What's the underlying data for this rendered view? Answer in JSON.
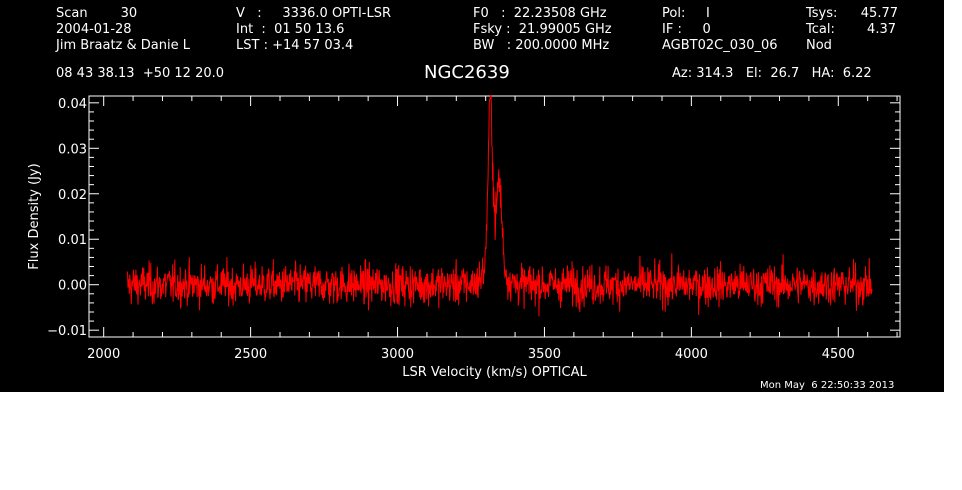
{
  "header": {
    "col1": [
      "Scan        30",
      "2004-01-28",
      "Jim Braatz & Danie L"
    ],
    "col2": [
      "V   :     3336.0 OPTI-LSR",
      "Int  :  01 50 13.6",
      "LST : +14 57 03.4"
    ],
    "col3": [
      "F0   :  22.23508 GHz",
      "Fsky :  21.99005 GHz",
      "BW   : 200.0000 MHz"
    ],
    "col4": [
      "Pol:     I",
      "IF :     0",
      "AGBT02C_030_06"
    ],
    "col5a": [
      "Tsys:",
      "Tcal:",
      "Nod"
    ],
    "col5b": [
      "45.77",
      "4.37",
      ""
    ],
    "coords": "08 43 38.13  +50 12 20.0",
    "source": "NGC2639",
    "azel": "Az: 314.3   El:  26.7   HA:  6.22",
    "timestamp": "Mon May  6 22:50:33 2013"
  },
  "colors": {
    "background": "#000000",
    "axes": "#ffffff",
    "series": "#ff0000"
  },
  "chart_data": {
    "type": "line",
    "xlabel": "LSR Velocity (km/s) OPTICAL",
    "ylabel": "Flux Density (Jy)",
    "xlim": [
      1950,
      4710
    ],
    "ylim": [
      -0.0115,
      0.0415
    ],
    "xticks": [
      2000,
      2500,
      3000,
      3500,
      4000,
      4500
    ],
    "xtick_labels": [
      "2000",
      "2500",
      "3000",
      "3500",
      "4000",
      "4500"
    ],
    "yticks": [
      -0.01,
      0.0,
      0.01,
      0.02,
      0.03,
      0.04
    ],
    "ytick_labels": [
      "−0.01",
      "0.00",
      "0.01",
      "0.02",
      "0.03",
      "0.04"
    ],
    "grid": false,
    "series": [
      {
        "x_range": [
          2080,
          4615
        ],
        "noise_rms_approx": 0.0022,
        "peaks": [
          {
            "x": 3316,
            "y": 0.037
          },
          {
            "x": 3346,
            "y": 0.022
          }
        ]
      }
    ]
  }
}
